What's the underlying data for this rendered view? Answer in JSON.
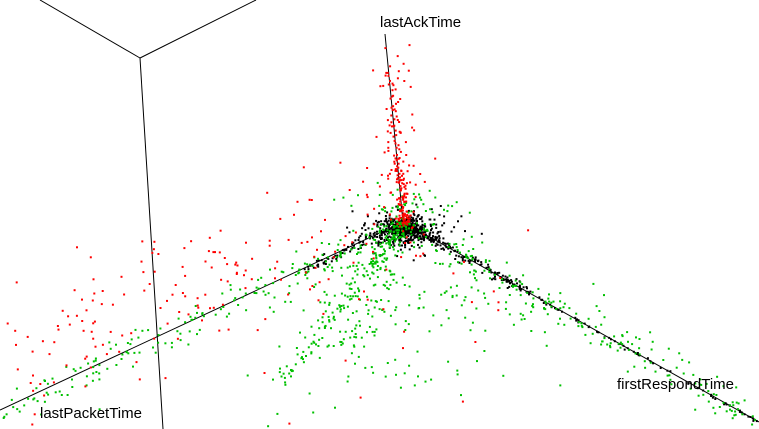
{
  "chart_data": {
    "type": "scatter",
    "projection": "3d",
    "axes": {
      "x_label": "firstRespondTime",
      "y_label": "lastPacketTime",
      "z_label": "lastAckTime"
    },
    "grid": false,
    "legend": "none",
    "colors": {
      "background": "#ffffff",
      "axis_lines": "#000000"
    },
    "series": [
      {
        "color": "#000000",
        "cluster": "dense core near origin along the three axes"
      },
      {
        "color": "#00c000",
        "cluster": "spread along the firstRespondTime and lastPacketTime axes and below the core"
      },
      {
        "color": "#ff0000",
        "cluster": "spread along the lastAckTime axis and scattered to the left"
      }
    ]
  }
}
